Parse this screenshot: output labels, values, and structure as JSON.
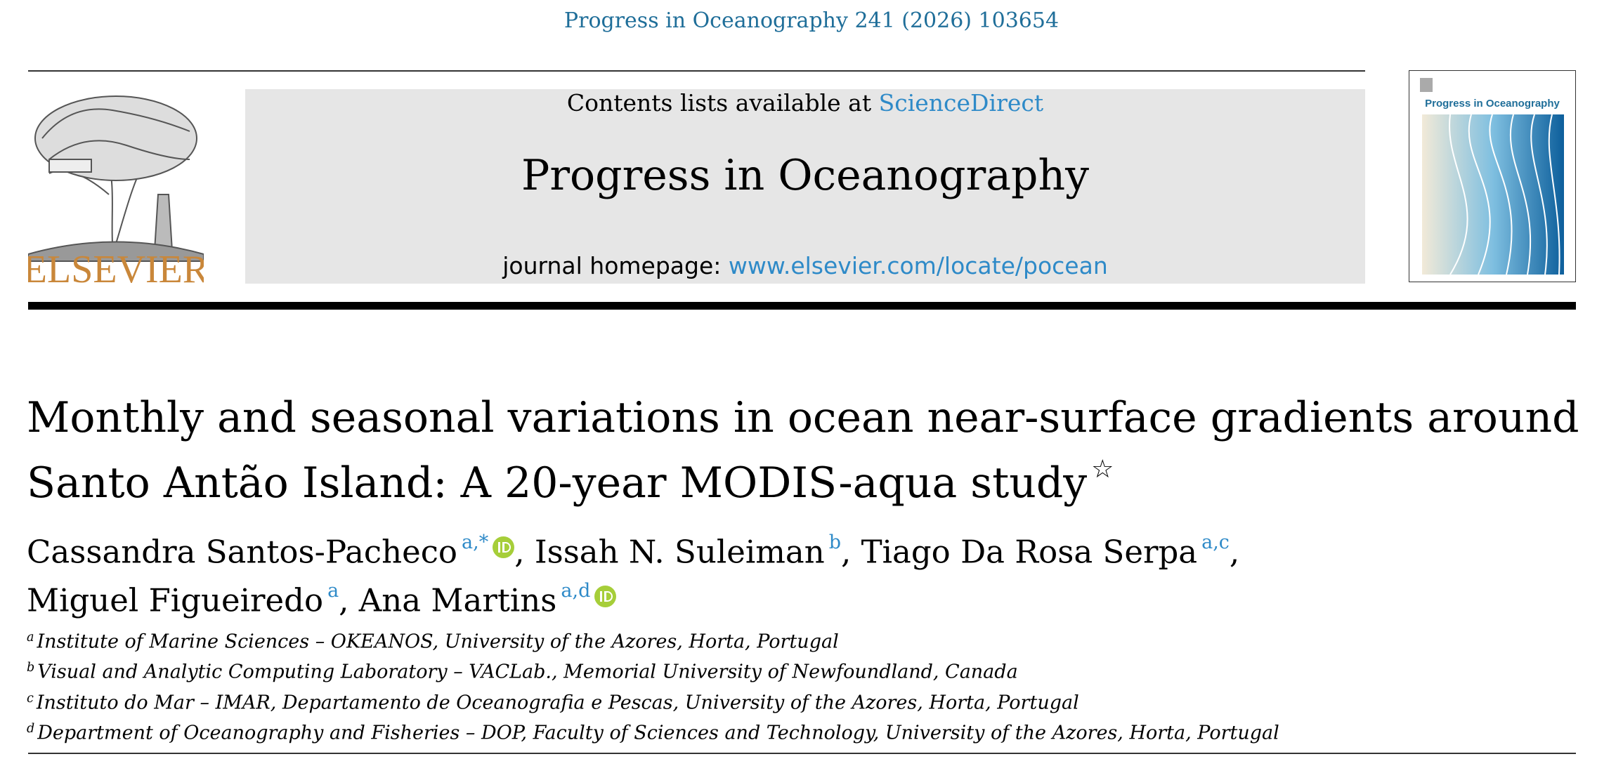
{
  "header": {
    "citation": "Progress in Oceanography 241 (2026) 103654"
  },
  "publisher": {
    "name": "ELSEVIER"
  },
  "banner": {
    "contents_prefix": "Contents lists available at",
    "contents_link": "ScienceDirect",
    "journal": "Progress in Oceanography",
    "homepage_prefix": "journal homepage:",
    "homepage_link": "www.elsevier.com/locate/pocean"
  },
  "cover": {
    "title": "Progress in Oceanography"
  },
  "article": {
    "title_lines": [
      "Monthly and seasonal variations in ocean near-surface gradients around",
      "Santo Antão Island: A 20-year MODIS-aqua study"
    ],
    "title_mark": "☆"
  },
  "authors": [
    [
      {
        "name": "Cassandra Santos-Pacheco",
        "sup": "a,*",
        "orcid": true,
        "punct": ","
      },
      {
        "name": "Issah N. Suleiman",
        "sup": "b",
        "punct": ","
      },
      {
        "name": "Tiago Da Rosa Serpa",
        "sup": "a,c",
        "punct": ","
      }
    ],
    [
      {
        "name": "Miguel Figueiredo",
        "sup": "a",
        "punct": ","
      },
      {
        "name": "Ana Martins",
        "sup": "a,d",
        "orcid": true
      }
    ]
  ],
  "affiliations": [
    {
      "key": "a",
      "text": "Institute of Marine Sciences – OKEANOS, University of the Azores, Horta, Portugal"
    },
    {
      "key": "b",
      "text": "Visual and Analytic Computing Laboratory – VACLab., Memorial University of Newfoundland, Canada"
    },
    {
      "key": "c",
      "text": "Instituto do Mar – IMAR, Departamento de Oceanografia e Pescas, University of the Azores, Horta, Portugal"
    },
    {
      "key": "d",
      "text": "Department of Oceanography and Fisheries – DOP, Faculty of Sciences and Technology, University of the Azores, Horta, Portugal"
    }
  ]
}
